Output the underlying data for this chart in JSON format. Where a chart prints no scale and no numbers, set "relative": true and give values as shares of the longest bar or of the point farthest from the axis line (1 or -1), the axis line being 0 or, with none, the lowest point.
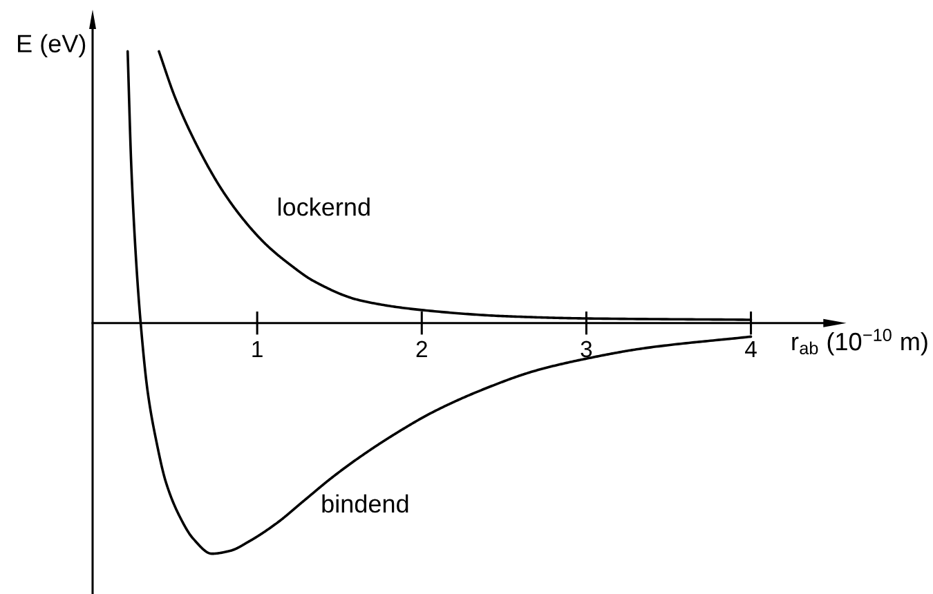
{
  "chart_data": {
    "type": "line",
    "relative": true,
    "xlabel": "r$_{ab}$ (10$^{−10}$ m)",
    "ylabel": "E (eV)",
    "xlim": [
      0,
      4.51
    ],
    "xticks": [
      1,
      2,
      3,
      4
    ],
    "tick_labels": "x",
    "line_style": "solid",
    "series": [
      {
        "name": "lockernd",
        "color": "#000000",
        "x": [
          0.403,
          0.502,
          0.641,
          0.782,
          0.922,
          1.061,
          1.202,
          1.342,
          1.622,
          2.0,
          2.518,
          3.0,
          4.0
        ],
        "values": [
          1.0,
          0.829,
          0.645,
          0.494,
          0.377,
          0.285,
          0.214,
          0.155,
          0.084,
          0.048,
          0.025,
          0.017,
          0.012
        ]
      },
      {
        "name": "bindend",
        "color": "#000000",
        "x": [
          0.213,
          0.235,
          0.263,
          0.292,
          0.334,
          0.389,
          0.445,
          0.529,
          0.613,
          0.725,
          0.838,
          0.95,
          1.118,
          1.286,
          1.454,
          1.622,
          1.846,
          2.07,
          2.378,
          2.687,
          3.0,
          3.359,
          4.0
        ],
        "values": [
          1.0,
          0.578,
          0.243,
          0.0,
          -0.25,
          -0.44,
          -0.585,
          -0.712,
          -0.795,
          -0.849,
          -0.838,
          -0.804,
          -0.737,
          -0.653,
          -0.569,
          -0.494,
          -0.405,
          -0.327,
          -0.243,
          -0.176,
          -0.131,
          -0.092,
          -0.05
        ]
      }
    ]
  }
}
